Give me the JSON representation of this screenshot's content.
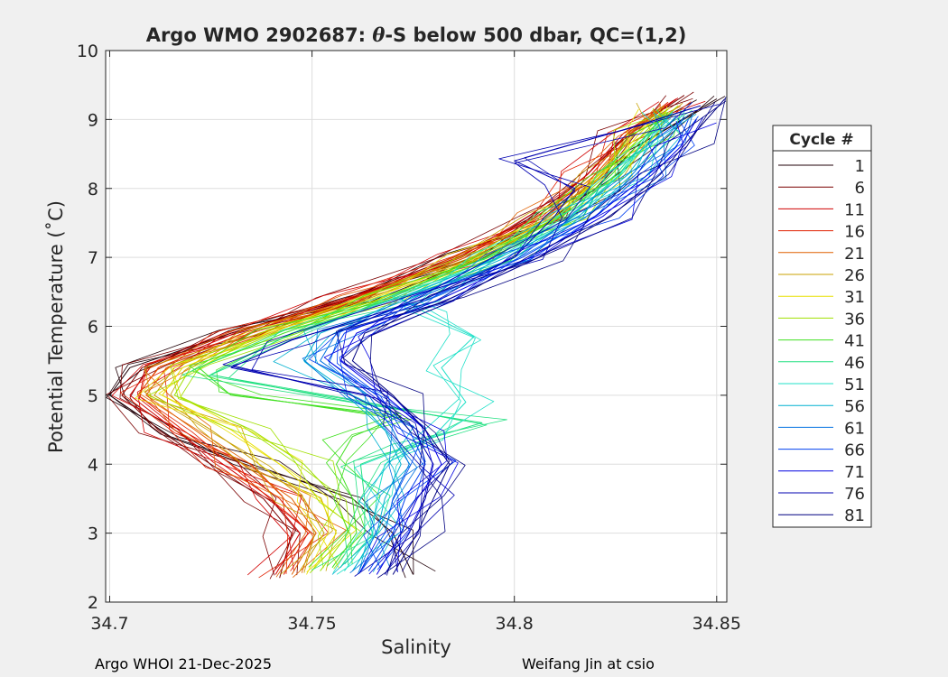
{
  "chart_data": {
    "type": "line",
    "title": "Argo WMO 2902687: θ-S below 500 dbar,  QC=(1,2)",
    "title_parts": {
      "prefix": "Argo WMO 2902687: ",
      "theta": "θ",
      "suffix": "-S below 500 dbar,  QC=(1,2)"
    },
    "xlabel": "Salinity",
    "ylabel": "Potential Temperature (˚C)",
    "xlim": [
      34.699,
      34.8525
    ],
    "ylim": [
      2,
      10
    ],
    "xticks": [
      34.7,
      34.75,
      34.8,
      34.85
    ],
    "xtick_labels": [
      "34.7",
      "34.75",
      "34.8",
      "34.85"
    ],
    "yticks": [
      2,
      3,
      4,
      5,
      6,
      7,
      8,
      9,
      10
    ],
    "ytick_labels": [
      "2",
      "3",
      "4",
      "5",
      "6",
      "7",
      "8",
      "9",
      "10"
    ],
    "grid": true,
    "legend_title": "Cycle #",
    "legend_position": "outside-right",
    "series": [
      {
        "name": "1",
        "color": "#200008",
        "points": [
          [
            34.775,
            2.4
          ],
          [
            34.77,
            3.0
          ],
          [
            34.76,
            3.5
          ],
          [
            34.735,
            4.0
          ],
          [
            34.715,
            4.4
          ],
          [
            34.7,
            5.0
          ],
          [
            34.705,
            5.4
          ],
          [
            34.73,
            5.9
          ],
          [
            34.76,
            6.4
          ],
          [
            34.79,
            7.0
          ],
          [
            34.81,
            7.6
          ],
          [
            34.82,
            8.0
          ],
          [
            34.83,
            8.6
          ],
          [
            34.85,
            9.3
          ]
        ]
      },
      {
        "name": "6",
        "color": "#7a0000",
        "points": [
          [
            34.742,
            2.35
          ],
          [
            34.745,
            3.0
          ],
          [
            34.738,
            3.5
          ],
          [
            34.725,
            4.0
          ],
          [
            34.712,
            4.5
          ],
          [
            34.703,
            5.0
          ],
          [
            34.708,
            5.4
          ],
          [
            34.73,
            5.9
          ],
          [
            34.758,
            6.4
          ],
          [
            34.785,
            7.0
          ],
          [
            34.805,
            7.6
          ],
          [
            34.818,
            8.2
          ],
          [
            34.828,
            8.8
          ],
          [
            34.842,
            9.35
          ]
        ]
      },
      {
        "name": "11",
        "color": "#d00000",
        "points": [
          [
            34.741,
            2.4
          ],
          [
            34.747,
            3.0
          ],
          [
            34.74,
            3.5
          ],
          [
            34.728,
            4.0
          ],
          [
            34.716,
            4.5
          ],
          [
            34.705,
            5.0
          ],
          [
            34.71,
            5.4
          ],
          [
            34.731,
            5.9
          ],
          [
            34.759,
            6.4
          ],
          [
            34.786,
            7.0
          ],
          [
            34.806,
            7.6
          ],
          [
            34.818,
            8.2
          ],
          [
            34.827,
            8.8
          ],
          [
            34.84,
            9.3
          ]
        ]
      },
      {
        "name": "16",
        "color": "#e02000",
        "points": [
          [
            34.743,
            2.4
          ],
          [
            34.749,
            3.0
          ],
          [
            34.742,
            3.5
          ],
          [
            34.73,
            4.0
          ],
          [
            34.718,
            4.5
          ],
          [
            34.707,
            5.0
          ],
          [
            34.712,
            5.4
          ],
          [
            34.733,
            5.9
          ],
          [
            34.76,
            6.4
          ],
          [
            34.787,
            7.0
          ],
          [
            34.807,
            7.6
          ],
          [
            34.819,
            8.2
          ],
          [
            34.828,
            8.8
          ],
          [
            34.838,
            9.25
          ]
        ]
      },
      {
        "name": "21",
        "color": "#e06000",
        "points": [
          [
            34.745,
            2.4
          ],
          [
            34.751,
            3.0
          ],
          [
            34.745,
            3.5
          ],
          [
            34.733,
            4.0
          ],
          [
            34.721,
            4.5
          ],
          [
            34.709,
            5.0
          ],
          [
            34.714,
            5.4
          ],
          [
            34.735,
            5.9
          ],
          [
            34.762,
            6.4
          ],
          [
            34.788,
            7.0
          ],
          [
            34.808,
            7.6
          ],
          [
            34.82,
            8.2
          ],
          [
            34.829,
            8.8
          ],
          [
            34.837,
            9.2
          ]
        ]
      },
      {
        "name": "26",
        "color": "#c8a000",
        "points": [
          [
            34.747,
            2.45
          ],
          [
            34.753,
            3.0
          ],
          [
            34.748,
            3.5
          ],
          [
            34.737,
            4.0
          ],
          [
            34.725,
            4.5
          ],
          [
            34.711,
            5.0
          ],
          [
            34.716,
            5.4
          ],
          [
            34.737,
            5.9
          ],
          [
            34.764,
            6.4
          ],
          [
            34.79,
            7.0
          ],
          [
            34.809,
            7.6
          ],
          [
            34.821,
            8.2
          ],
          [
            34.83,
            8.8
          ],
          [
            34.837,
            9.2
          ]
        ]
      },
      {
        "name": "31",
        "color": "#e8e000",
        "points": [
          [
            34.75,
            2.45
          ],
          [
            34.756,
            3.0
          ],
          [
            34.752,
            3.5
          ],
          [
            34.742,
            4.0
          ],
          [
            34.73,
            4.5
          ],
          [
            34.713,
            5.0
          ],
          [
            34.718,
            5.4
          ],
          [
            34.739,
            5.9
          ],
          [
            34.765,
            6.4
          ],
          [
            34.791,
            7.0
          ],
          [
            34.81,
            7.6
          ],
          [
            34.822,
            8.2
          ],
          [
            34.831,
            8.8
          ],
          [
            34.837,
            9.15
          ]
        ]
      },
      {
        "name": "36",
        "color": "#a0e000",
        "points": [
          [
            34.752,
            2.45
          ],
          [
            34.759,
            3.0
          ],
          [
            34.756,
            3.5
          ],
          [
            34.748,
            4.0
          ],
          [
            34.735,
            4.5
          ],
          [
            34.716,
            5.0
          ],
          [
            34.72,
            5.4
          ],
          [
            34.741,
            5.9
          ],
          [
            34.767,
            6.4
          ],
          [
            34.792,
            7.0
          ],
          [
            34.811,
            7.6
          ],
          [
            34.823,
            8.2
          ],
          [
            34.832,
            8.8
          ],
          [
            34.838,
            9.15
          ]
        ]
      },
      {
        "name": "41",
        "color": "#40e020",
        "points": [
          [
            34.755,
            2.5
          ],
          [
            34.761,
            3.0
          ],
          [
            34.76,
            3.5
          ],
          [
            34.756,
            4.0
          ],
          [
            34.76,
            4.4
          ],
          [
            34.772,
            4.7
          ],
          [
            34.73,
            5.0
          ],
          [
            34.722,
            5.4
          ],
          [
            34.743,
            5.9
          ],
          [
            34.768,
            6.4
          ],
          [
            34.793,
            7.0
          ],
          [
            34.812,
            7.6
          ],
          [
            34.824,
            8.2
          ],
          [
            34.833,
            8.8
          ],
          [
            34.838,
            9.1
          ]
        ]
      },
      {
        "name": "46",
        "color": "#20e080",
        "points": [
          [
            34.757,
            2.5
          ],
          [
            34.763,
            3.0
          ],
          [
            34.763,
            3.5
          ],
          [
            34.762,
            4.0
          ],
          [
            34.775,
            4.3
          ],
          [
            34.792,
            4.6
          ],
          [
            34.76,
            4.9
          ],
          [
            34.725,
            5.3
          ],
          [
            34.745,
            5.9
          ],
          [
            34.77,
            6.4
          ],
          [
            34.795,
            7.0
          ],
          [
            34.813,
            7.6
          ],
          [
            34.825,
            8.2
          ],
          [
            34.834,
            8.8
          ],
          [
            34.839,
            9.1
          ]
        ]
      },
      {
        "name": "51",
        "color": "#20e0c8",
        "points": [
          [
            34.758,
            2.45
          ],
          [
            34.765,
            3.0
          ],
          [
            34.766,
            3.5
          ],
          [
            34.768,
            4.0
          ],
          [
            34.78,
            4.4
          ],
          [
            34.788,
            4.9
          ],
          [
            34.782,
            5.4
          ],
          [
            34.79,
            5.85
          ],
          [
            34.778,
            6.2
          ],
          [
            34.772,
            6.4
          ],
          [
            34.796,
            7.0
          ],
          [
            34.814,
            7.6
          ],
          [
            34.826,
            8.2
          ],
          [
            34.835,
            8.8
          ],
          [
            34.839,
            9.1
          ]
        ]
      },
      {
        "name": "56",
        "color": "#00b0d0",
        "points": [
          [
            34.76,
            2.45
          ],
          [
            34.766,
            3.0
          ],
          [
            34.768,
            3.5
          ],
          [
            34.772,
            4.0
          ],
          [
            34.768,
            4.5
          ],
          [
            34.76,
            5.0
          ],
          [
            34.748,
            5.5
          ],
          [
            34.752,
            5.9
          ],
          [
            34.774,
            6.4
          ],
          [
            34.798,
            7.0
          ],
          [
            34.816,
            7.6
          ],
          [
            34.828,
            8.2
          ],
          [
            34.836,
            8.8
          ],
          [
            34.84,
            9.05
          ]
        ]
      },
      {
        "name": "61",
        "color": "#0070e0",
        "points": [
          [
            34.762,
            2.45
          ],
          [
            34.768,
            3.0
          ],
          [
            34.77,
            3.5
          ],
          [
            34.774,
            4.0
          ],
          [
            34.77,
            4.5
          ],
          [
            34.764,
            5.0
          ],
          [
            34.752,
            5.5
          ],
          [
            34.756,
            5.9
          ],
          [
            34.776,
            6.4
          ],
          [
            34.8,
            7.0
          ],
          [
            34.818,
            7.6
          ],
          [
            34.83,
            8.2
          ],
          [
            34.838,
            8.7
          ],
          [
            34.842,
            9.05
          ]
        ]
      },
      {
        "name": "66",
        "color": "#0040f0",
        "points": [
          [
            34.764,
            2.45
          ],
          [
            34.77,
            3.0
          ],
          [
            34.773,
            3.5
          ],
          [
            34.778,
            4.0
          ],
          [
            34.774,
            4.5
          ],
          [
            34.766,
            5.0
          ],
          [
            34.754,
            5.5
          ],
          [
            34.758,
            5.9
          ],
          [
            34.779,
            6.4
          ],
          [
            34.802,
            7.0
          ],
          [
            34.82,
            7.6
          ],
          [
            34.833,
            8.2
          ],
          [
            34.84,
            8.6
          ],
          [
            34.843,
            9.0
          ]
        ]
      },
      {
        "name": "71",
        "color": "#0000e0",
        "points": [
          [
            34.766,
            2.4
          ],
          [
            34.772,
            3.0
          ],
          [
            34.776,
            3.5
          ],
          [
            34.782,
            4.0
          ],
          [
            34.778,
            4.5
          ],
          [
            34.768,
            5.0
          ],
          [
            34.757,
            5.5
          ],
          [
            34.761,
            5.9
          ],
          [
            34.782,
            6.4
          ],
          [
            34.804,
            7.0
          ],
          [
            34.822,
            7.6
          ],
          [
            34.834,
            8.2
          ],
          [
            34.841,
            8.6
          ],
          [
            34.845,
            9.0
          ]
        ]
      },
      {
        "name": "76",
        "color": "#0000b0",
        "points": [
          [
            34.768,
            2.4
          ],
          [
            34.774,
            3.0
          ],
          [
            34.778,
            3.5
          ],
          [
            34.78,
            4.0
          ],
          [
            34.774,
            4.6
          ],
          [
            34.764,
            5.0
          ],
          [
            34.73,
            5.4
          ],
          [
            34.745,
            5.8
          ],
          [
            34.778,
            6.4
          ],
          [
            34.8,
            7.0
          ],
          [
            34.81,
            7.6
          ],
          [
            34.815,
            8.0
          ],
          [
            34.8,
            8.4
          ],
          [
            34.83,
            8.9
          ],
          [
            34.846,
            9.2
          ]
        ]
      },
      {
        "name": "81",
        "color": "#000080",
        "points": [
          [
            34.77,
            2.4
          ],
          [
            34.776,
            3.0
          ],
          [
            34.78,
            3.5
          ],
          [
            34.784,
            4.0
          ],
          [
            34.778,
            4.5
          ],
          [
            34.77,
            5.0
          ],
          [
            34.76,
            5.5
          ],
          [
            34.763,
            5.9
          ],
          [
            34.784,
            6.4
          ],
          [
            34.806,
            7.0
          ],
          [
            34.824,
            7.6
          ],
          [
            34.836,
            8.2
          ],
          [
            34.843,
            8.7
          ],
          [
            34.852,
            9.3
          ]
        ]
      }
    ]
  },
  "footer": {
    "left": "Argo WHOI 21-Dec-2025",
    "right": "Weifang Jin at csio"
  }
}
